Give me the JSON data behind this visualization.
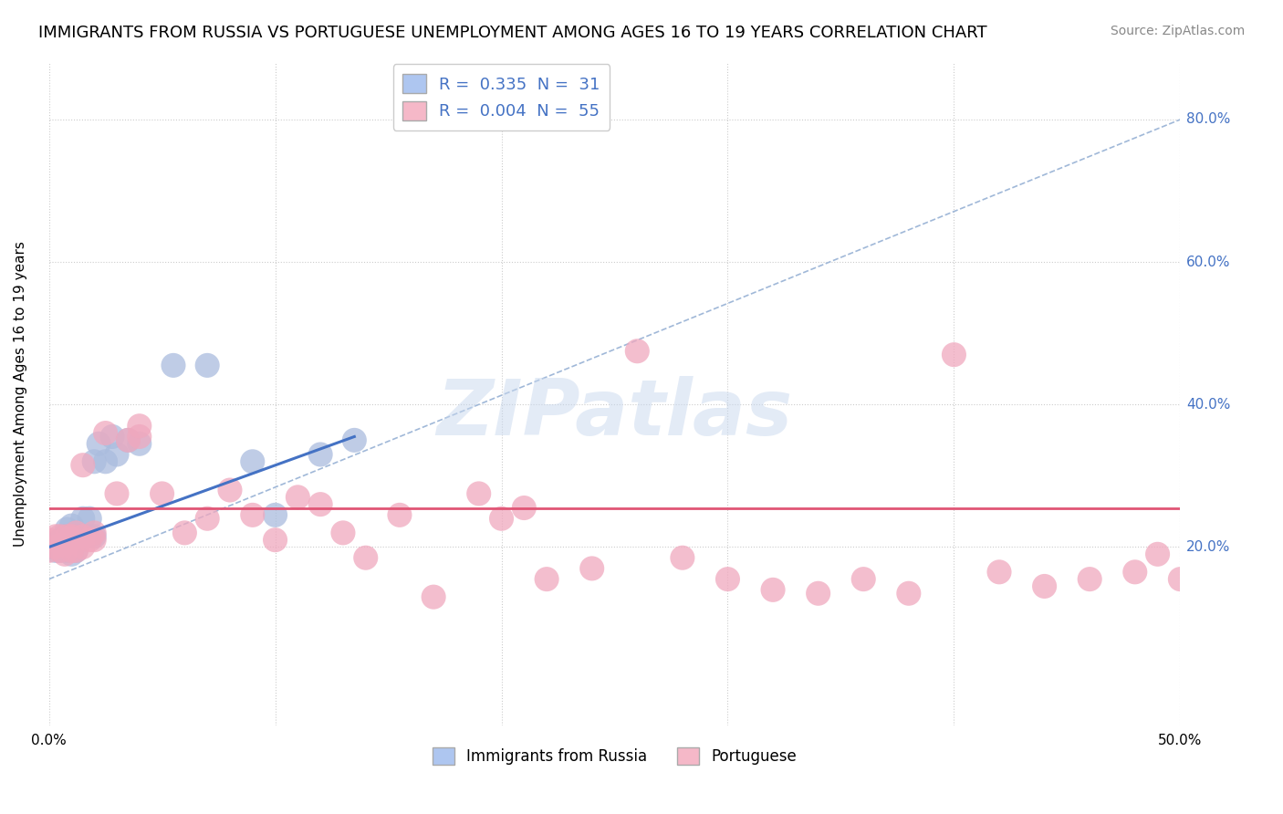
{
  "title": "IMMIGRANTS FROM RUSSIA VS PORTUGUESE UNEMPLOYMENT AMONG AGES 16 TO 19 YEARS CORRELATION CHART",
  "source": "Source: ZipAtlas.com",
  "ylabel": "Unemployment Among Ages 16 to 19 years",
  "xlim": [
    0.0,
    0.5
  ],
  "ylim": [
    -0.05,
    0.88
  ],
  "xticks": [
    0.0,
    0.1,
    0.2,
    0.3,
    0.4,
    0.5
  ],
  "ytick_labels": [
    "20.0%",
    "40.0%",
    "60.0%",
    "80.0%"
  ],
  "ytick_values": [
    0.2,
    0.4,
    0.6,
    0.8
  ],
  "legend_r1": "R =  0.335  N =  31",
  "legend_r2": "R =  0.004  N =  55",
  "legend_color1": "#aec6f0",
  "legend_color2": "#f5b8c8",
  "watermark": "ZIPatlas",
  "background_color": "#ffffff",
  "grid_color": "#cccccc",
  "blue_scatter_color": "#aabcde",
  "pink_scatter_color": "#f0a8be",
  "blue_line_color": "#4472c4",
  "pink_line_color": "#e05575",
  "dashed_line_color": "#a0b8d8",
  "title_fontsize": 13,
  "source_fontsize": 10,
  "axis_label_fontsize": 11,
  "blue_line_x": [
    0.0,
    0.135
  ],
  "blue_line_y": [
    0.2,
    0.355
  ],
  "pink_line_y": 0.255,
  "dashed_line_x": [
    0.0,
    0.5
  ],
  "dashed_line_y": [
    0.155,
    0.8
  ],
  "blue_x": [
    0.0,
    0.003,
    0.003,
    0.005,
    0.005,
    0.007,
    0.007,
    0.008,
    0.008,
    0.01,
    0.01,
    0.01,
    0.012,
    0.012,
    0.015,
    0.015,
    0.018,
    0.02,
    0.02,
    0.022,
    0.025,
    0.028,
    0.03,
    0.035,
    0.04,
    0.055,
    0.07,
    0.09,
    0.1,
    0.12,
    0.135
  ],
  "blue_y": [
    0.2,
    0.195,
    0.205,
    0.195,
    0.21,
    0.21,
    0.215,
    0.195,
    0.225,
    0.19,
    0.215,
    0.23,
    0.195,
    0.22,
    0.215,
    0.24,
    0.24,
    0.215,
    0.32,
    0.345,
    0.32,
    0.355,
    0.33,
    0.35,
    0.345,
    0.455,
    0.455,
    0.32,
    0.245,
    0.33,
    0.35
  ],
  "pink_x": [
    0.0,
    0.0,
    0.003,
    0.003,
    0.005,
    0.005,
    0.007,
    0.008,
    0.01,
    0.01,
    0.01,
    0.012,
    0.012,
    0.015,
    0.015,
    0.015,
    0.018,
    0.02,
    0.02,
    0.025,
    0.03,
    0.035,
    0.04,
    0.04,
    0.05,
    0.06,
    0.07,
    0.08,
    0.09,
    0.1,
    0.11,
    0.12,
    0.13,
    0.14,
    0.155,
    0.17,
    0.19,
    0.2,
    0.21,
    0.22,
    0.24,
    0.26,
    0.28,
    0.3,
    0.32,
    0.34,
    0.36,
    0.38,
    0.4,
    0.42,
    0.44,
    0.46,
    0.48,
    0.49,
    0.5
  ],
  "pink_y": [
    0.195,
    0.21,
    0.2,
    0.215,
    0.195,
    0.215,
    0.19,
    0.215,
    0.195,
    0.21,
    0.215,
    0.195,
    0.22,
    0.2,
    0.215,
    0.315,
    0.21,
    0.21,
    0.22,
    0.36,
    0.275,
    0.35,
    0.355,
    0.37,
    0.275,
    0.22,
    0.24,
    0.28,
    0.245,
    0.21,
    0.27,
    0.26,
    0.22,
    0.185,
    0.245,
    0.13,
    0.275,
    0.24,
    0.255,
    0.155,
    0.17,
    0.475,
    0.185,
    0.155,
    0.14,
    0.135,
    0.155,
    0.135,
    0.47,
    0.165,
    0.145,
    0.155,
    0.165,
    0.19,
    0.155
  ],
  "bottom_legend_labels": [
    "Immigrants from Russia",
    "Portuguese"
  ]
}
